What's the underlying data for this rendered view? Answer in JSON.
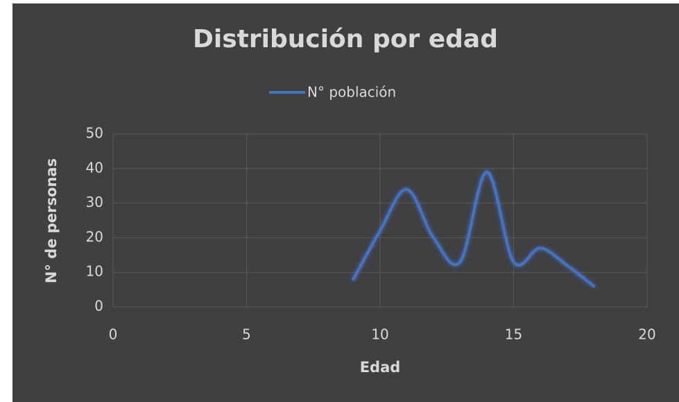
{
  "chart_data": {
    "type": "scatter_smooth",
    "title": "Distribución por edad",
    "x_label": "Edad",
    "y_label": "N° de personas",
    "x": [
      9,
      10,
      11,
      12,
      13,
      14,
      15,
      16,
      17,
      18
    ],
    "series": [
      {
        "name": "N° población",
        "color": "#4472c4",
        "values": [
          8,
          22,
          34,
          20,
          13,
          39,
          13,
          17,
          12,
          6
        ]
      }
    ],
    "xlim": [
      0,
      20
    ],
    "xticks": [
      0,
      5,
      10,
      15,
      20
    ],
    "ylim": [
      0,
      50
    ],
    "yticks": [
      0,
      10,
      20,
      30,
      40,
      50
    ],
    "grid": true,
    "legend": "top"
  }
}
